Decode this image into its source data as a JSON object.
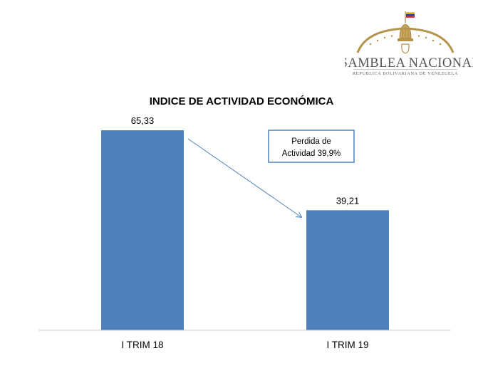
{
  "logo": {
    "name": "ASAMBLEA NACIONAL",
    "subtitle": "REPÚBLICA BOLIVARIANA DE VENEZUELA",
    "colors": {
      "gold": "#b5944b",
      "flag_yellow": "#f2c300",
      "flag_blue": "#1f3f9a",
      "flag_red": "#cf1f2e"
    }
  },
  "chart_data": {
    "type": "bar",
    "title": "INDICE DE ACTIVIDAD ECONÓMICA",
    "categories": [
      "I TRIM 18",
      "I TRIM 19"
    ],
    "values": [
      65.33,
      39.21
    ],
    "value_labels": [
      "65,33",
      "39,21"
    ],
    "xlabel": "",
    "ylabel": "",
    "ylim": [
      0,
      70
    ],
    "grid": false,
    "legend": "none",
    "bar_color": "#4f81bd",
    "annotation": {
      "lines": [
        "Perdida de",
        "Actividad 39,9%"
      ],
      "arrow": "from I TRIM 18 bar to I TRIM 19 bar",
      "border_color": "#4f81bd"
    }
  }
}
